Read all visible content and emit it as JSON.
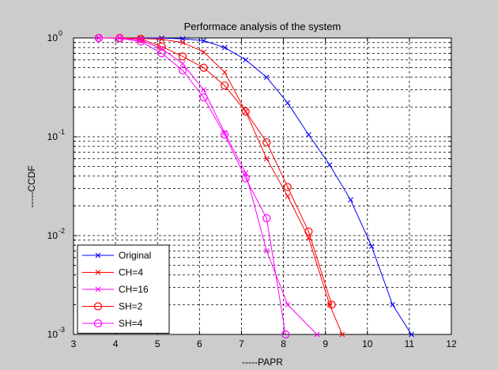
{
  "chart_data": {
    "type": "line",
    "title": "Performace analysis of the system",
    "xlabel": "-----PAPR",
    "ylabel": "-----CCDF",
    "xlim": [
      3,
      12
    ],
    "ylim": [
      0.001,
      1
    ],
    "yscale": "log",
    "grid": true,
    "legend_position": "bottom-left",
    "x_ticks": [
      "3",
      "4",
      "5",
      "6",
      "7",
      "8",
      "9",
      "10",
      "11",
      "12"
    ],
    "y_ticks": [
      {
        "base": "10",
        "exp": "0",
        "value": 1
      },
      {
        "base": "10",
        "exp": "-1",
        "value": 0.1
      },
      {
        "base": "10",
        "exp": "-2",
        "value": 0.01
      },
      {
        "base": "10",
        "exp": "-3",
        "value": 0.001
      }
    ],
    "series": [
      {
        "name": "Original",
        "color": "#0000ff",
        "marker": "x",
        "points": [
          [
            3.6,
            1
          ],
          [
            4.1,
            1
          ],
          [
            4.6,
            1
          ],
          [
            5.1,
            0.995
          ],
          [
            5.6,
            0.98
          ],
          [
            6.1,
            0.94
          ],
          [
            6.6,
            0.8
          ],
          [
            7.1,
            0.6
          ],
          [
            7.6,
            0.4
          ],
          [
            8.1,
            0.22
          ],
          [
            8.6,
            0.105
          ],
          [
            9.1,
            0.052
          ],
          [
            9.6,
            0.023
          ],
          [
            10.1,
            0.0078
          ],
          [
            10.6,
            0.002
          ],
          [
            11.05,
            0.001
          ]
        ]
      },
      {
        "name": "CH=4",
        "color": "#ff0000",
        "marker": "x",
        "points": [
          [
            3.6,
            1
          ],
          [
            4.1,
            1
          ],
          [
            4.6,
            0.99
          ],
          [
            5.1,
            0.97
          ],
          [
            5.6,
            0.9
          ],
          [
            6.1,
            0.72
          ],
          [
            6.6,
            0.45
          ],
          [
            7.1,
            0.18
          ],
          [
            7.6,
            0.06
          ],
          [
            8.1,
            0.025
          ],
          [
            8.6,
            0.0095
          ],
          [
            9.1,
            0.002
          ],
          [
            9.4,
            0.001
          ]
        ]
      },
      {
        "name": "CH=16",
        "color": "#ff00ff",
        "marker": "x",
        "points": [
          [
            3.6,
            1
          ],
          [
            4.1,
            1
          ],
          [
            4.6,
            0.95
          ],
          [
            5.1,
            0.78
          ],
          [
            5.6,
            0.55
          ],
          [
            6.1,
            0.3
          ],
          [
            6.6,
            0.11
          ],
          [
            7.1,
            0.043
          ],
          [
            7.6,
            0.007
          ],
          [
            8.1,
            0.002
          ],
          [
            8.8,
            0.001
          ]
        ]
      },
      {
        "name": "SH=2",
        "color": "#ff0000",
        "marker": "o",
        "points": [
          [
            3.6,
            1
          ],
          [
            4.1,
            1
          ],
          [
            4.6,
            0.98
          ],
          [
            5.1,
            0.82
          ],
          [
            5.6,
            0.65
          ],
          [
            6.1,
            0.5
          ],
          [
            6.6,
            0.33
          ],
          [
            7.1,
            0.18
          ],
          [
            7.6,
            0.088
          ],
          [
            8.1,
            0.031
          ],
          [
            8.6,
            0.011
          ],
          [
            9.15,
            0.002
          ]
        ]
      },
      {
        "name": "SH=4",
        "color": "#ff00ff",
        "marker": "o",
        "points": [
          [
            3.6,
            1
          ],
          [
            4.1,
            0.99
          ],
          [
            4.6,
            0.92
          ],
          [
            5.1,
            0.7
          ],
          [
            5.6,
            0.47
          ],
          [
            6.1,
            0.25
          ],
          [
            6.6,
            0.105
          ],
          [
            7.1,
            0.038
          ],
          [
            7.6,
            0.015
          ],
          [
            8.05,
            0.001
          ]
        ]
      }
    ]
  }
}
